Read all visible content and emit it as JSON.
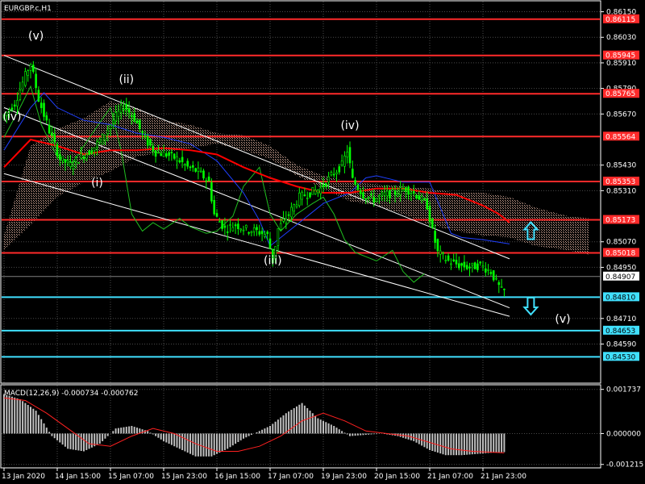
{
  "title": "EURGBP.c,H1",
  "macd_label": "MACD(12,26,9) -0.000734 -0.000762",
  "colors": {
    "background": "#000000",
    "grid": "#4a4a4a",
    "candle": "#00ff00",
    "resistance": "#ff2a2a",
    "support": "#40e0ff",
    "channel": "#ffffff",
    "ma_red": "#ff0000",
    "ma_blue": "#2040ff",
    "lagging": "#20c020",
    "cloud": "#c8a090",
    "macd_signal": "#ff2020",
    "macd_hist": "#c0c0c0",
    "arrow": "#40e0ff"
  },
  "chart_data": [
    {
      "type": "candlestick",
      "symbol": "EURGBP.c",
      "timeframe": "H1",
      "ylim": [
        0.8441,
        0.8619
      ],
      "y_ticks": [
        {
          "value": 0.8615,
          "label": "0.86150"
        },
        {
          "value": 0.8603,
          "label": "0.86030"
        },
        {
          "value": 0.8591,
          "label": "0.85910"
        },
        {
          "value": 0.8579,
          "label": "0.85790"
        },
        {
          "value": 0.8567,
          "label": "0.85670"
        },
        {
          "value": 0.8543,
          "label": "0.85430"
        },
        {
          "value": 0.8531,
          "label": "0.85310"
        },
        {
          "value": 0.8507,
          "label": "0.85070"
        },
        {
          "value": 0.8495,
          "label": "0.84950"
        },
        {
          "value": 0.8471,
          "label": "0.84710"
        },
        {
          "value": 0.8459,
          "label": "0.84590"
        }
      ],
      "x_ticks": [
        "13 Jan 2020",
        "14 Jan 15:00",
        "15 Jan 07:00",
        "15 Jan 23:00",
        "16 Jan 15:00",
        "17 Jan 07:00",
        "19 Jan 23:00",
        "20 Jan 15:00",
        "21 Jan 07:00",
        "21 Jan 23:00"
      ],
      "x_index_range": [
        0,
        200
      ],
      "x_tick_index": [
        0,
        20,
        40,
        60,
        80,
        100,
        120,
        140,
        160,
        180
      ],
      "current_price": {
        "value": 0.84907,
        "label": "0.84907"
      },
      "resistance_levels": [
        {
          "value": 0.86115,
          "label": "0.86115"
        },
        {
          "value": 0.85945,
          "label": "0.85945"
        },
        {
          "value": 0.85765,
          "label": "0.85765"
        },
        {
          "value": 0.85564,
          "label": "0.85564"
        },
        {
          "value": 0.85353,
          "label": "0.85353"
        },
        {
          "value": 0.85173,
          "label": "0.85173"
        },
        {
          "value": 0.85018,
          "label": "0.85018"
        }
      ],
      "support_levels": [
        {
          "value": 0.8481,
          "label": "0.84810"
        },
        {
          "value": 0.84653,
          "label": "0.84653"
        },
        {
          "value": 0.8453,
          "label": "0.84530"
        }
      ],
      "channel_lines": [
        {
          "x": [
            0,
            190
          ],
          "y": [
            0.85945,
            0.8499
          ]
        },
        {
          "x": [
            0,
            190
          ],
          "y": [
            0.857,
            0.8476
          ]
        },
        {
          "x": [
            0,
            190
          ],
          "y": [
            0.8539,
            0.8472
          ]
        }
      ],
      "wave_labels": [
        {
          "text": "(v)",
          "x": 12,
          "y": 0.8602
        },
        {
          "text": "(ii)",
          "x": 46,
          "y": 0.85815
        },
        {
          "text": "(iv)",
          "x": 3,
          "y": 0.8564
        },
        {
          "text": "(i)",
          "x": 35,
          "y": 0.8533
        },
        {
          "text": "(iii)",
          "x": 101,
          "y": 0.84965
        },
        {
          "text": "(iv)",
          "x": 130,
          "y": 0.856
        },
        {
          "text": "(v)",
          "x": 210,
          "y": 0.8469
        }
      ],
      "arrows": [
        {
          "direction": "up",
          "x": 198,
          "y": 0.8512
        },
        {
          "direction": "down",
          "x": 198,
          "y": 0.8477
        }
      ],
      "price_path": {
        "x": [
          0,
          5,
          9,
          11,
          14,
          18,
          22,
          26,
          30,
          34,
          38,
          42,
          46,
          50,
          54,
          58,
          62,
          66,
          70,
          74,
          78,
          80,
          84,
          88,
          92,
          96,
          100,
          102,
          104,
          108,
          112,
          116,
          120,
          124,
          128,
          130,
          132,
          136,
          140,
          144,
          148,
          152,
          156,
          160,
          162,
          164,
          168,
          172,
          176,
          180,
          184,
          186,
          188
        ],
        "y": [
          0.8565,
          0.8572,
          0.8585,
          0.8591,
          0.8574,
          0.8559,
          0.8546,
          0.8543,
          0.8547,
          0.855,
          0.8556,
          0.8564,
          0.8571,
          0.8565,
          0.8555,
          0.8549,
          0.8548,
          0.8546,
          0.8542,
          0.854,
          0.8535,
          0.852,
          0.8513,
          0.8515,
          0.8513,
          0.8512,
          0.851,
          0.8498,
          0.8513,
          0.852,
          0.8528,
          0.853,
          0.8532,
          0.8538,
          0.8543,
          0.855,
          0.8536,
          0.8529,
          0.8527,
          0.8529,
          0.853,
          0.8532,
          0.8529,
          0.8524,
          0.8512,
          0.8502,
          0.8498,
          0.8496,
          0.8495,
          0.8496,
          0.8493,
          0.8488,
          0.8484
        ]
      },
      "kumo": {
        "x": [
          0,
          10,
          20,
          30,
          40,
          50,
          60,
          70,
          80,
          90,
          100,
          110,
          120,
          130,
          140,
          150,
          160,
          170,
          180,
          190,
          200,
          212,
          220
        ],
        "upper": [
          0.851,
          0.8552,
          0.856,
          0.8565,
          0.8573,
          0.857,
          0.8564,
          0.8562,
          0.8558,
          0.8557,
          0.8552,
          0.8543,
          0.8538,
          0.8535,
          0.8534,
          0.8533,
          0.8532,
          0.853,
          0.853,
          0.8528,
          0.8523,
          0.8519,
          0.8518
        ],
        "lower": [
          0.8503,
          0.8515,
          0.8528,
          0.8535,
          0.854,
          0.8547,
          0.8549,
          0.8551,
          0.8553,
          0.855,
          0.8546,
          0.8538,
          0.8532,
          0.8526,
          0.8524,
          0.852,
          0.8515,
          0.8512,
          0.851,
          0.8509,
          0.8505,
          0.8503,
          0.8501
        ]
      },
      "ma_red": {
        "x": [
          0,
          10,
          20,
          30,
          40,
          50,
          60,
          70,
          80,
          90,
          100,
          110,
          120,
          130,
          140,
          150,
          160,
          170,
          180,
          186,
          190
        ],
        "y": [
          0.8542,
          0.8555,
          0.8552,
          0.8548,
          0.855,
          0.855,
          0.8551,
          0.855,
          0.8548,
          0.8542,
          0.8537,
          0.8533,
          0.853,
          0.853,
          0.8532,
          0.8532,
          0.853,
          0.8529,
          0.8524,
          0.852,
          0.8516
        ]
      },
      "ma_blue": {
        "x": [
          0,
          10,
          15,
          20,
          30,
          40,
          50,
          60,
          70,
          80,
          90,
          96,
          100,
          110,
          120,
          130,
          136,
          140,
          150,
          160,
          165,
          168,
          172,
          180,
          190
        ],
        "y": [
          0.855,
          0.857,
          0.8577,
          0.857,
          0.8564,
          0.8562,
          0.8558,
          0.8556,
          0.8553,
          0.8545,
          0.853,
          0.8517,
          0.8505,
          0.8515,
          0.8525,
          0.853,
          0.8537,
          0.8538,
          0.8535,
          0.8535,
          0.852,
          0.8511,
          0.8509,
          0.8508,
          0.8506
        ]
      },
      "lagging_span": {
        "x": [
          0,
          6,
          10,
          14,
          20,
          26,
          30,
          36,
          40,
          44,
          48,
          52,
          56,
          60,
          66,
          70,
          76,
          80,
          86,
          90,
          96,
          100,
          104,
          110,
          116,
          120,
          124,
          128,
          132,
          136,
          140,
          146,
          150,
          154,
          158
        ],
        "y": [
          0.8556,
          0.857,
          0.858,
          0.8562,
          0.8547,
          0.8544,
          0.8552,
          0.8563,
          0.857,
          0.855,
          0.852,
          0.8512,
          0.8516,
          0.8513,
          0.8518,
          0.8514,
          0.8511,
          0.8512,
          0.8519,
          0.8533,
          0.8542,
          0.852,
          0.8512,
          0.852,
          0.8525,
          0.8528,
          0.852,
          0.8508,
          0.8502,
          0.85,
          0.8498,
          0.8503,
          0.8493,
          0.8488,
          0.8492
        ]
      }
    },
    {
      "type": "bar",
      "indicator": "MACD",
      "label": "MACD(12,26,9) -0.000734 -0.000762",
      "ylim": [
        -0.00135,
        0.00195
      ],
      "y_ticks": [
        {
          "value": 0.001737,
          "label": "0.001737"
        },
        {
          "value": 0.0,
          "label": "0.000000"
        },
        {
          "value": -0.001215,
          "label": "-0.001215"
        }
      ],
      "hist_points": {
        "x": [
          0,
          6,
          12,
          18,
          24,
          30,
          36,
          42,
          48,
          54,
          60,
          66,
          72,
          78,
          84,
          90,
          96,
          100,
          106,
          112,
          118,
          124,
          130,
          136,
          142,
          148,
          154,
          160,
          166,
          172,
          178,
          184,
          188
        ],
        "y": [
          0.00155,
          0.00135,
          0.0009,
          -0.0001,
          -0.0006,
          -0.0007,
          -0.0004,
          0.0002,
          0.0003,
          0.0001,
          -0.0003,
          -0.0006,
          -0.0009,
          -0.0009,
          -0.0006,
          -0.0002,
          0.0001,
          0.0003,
          0.0008,
          0.0012,
          0.0006,
          0.0003,
          -0.0001,
          -5e-05,
          0.0,
          -0.0001,
          -0.0003,
          -0.00065,
          -0.00085,
          -0.00085,
          -0.0008,
          -0.00075,
          -0.00073
        ]
      },
      "signal_points": {
        "x": [
          0,
          8,
          16,
          24,
          32,
          40,
          48,
          56,
          64,
          72,
          80,
          88,
          96,
          104,
          112,
          120,
          128,
          136,
          144,
          152,
          160,
          168,
          176,
          188
        ],
        "y": [
          0.0014,
          0.0013,
          0.0008,
          0.0002,
          -0.0004,
          -0.0005,
          -0.0001,
          0.0002,
          0.0,
          -0.0004,
          -0.0007,
          -0.0007,
          -0.0005,
          -0.0001,
          0.0005,
          0.0008,
          0.0005,
          0.0001,
          0.0,
          -0.0001,
          -0.00035,
          -0.0006,
          -0.0007,
          -0.00076
        ]
      }
    }
  ]
}
